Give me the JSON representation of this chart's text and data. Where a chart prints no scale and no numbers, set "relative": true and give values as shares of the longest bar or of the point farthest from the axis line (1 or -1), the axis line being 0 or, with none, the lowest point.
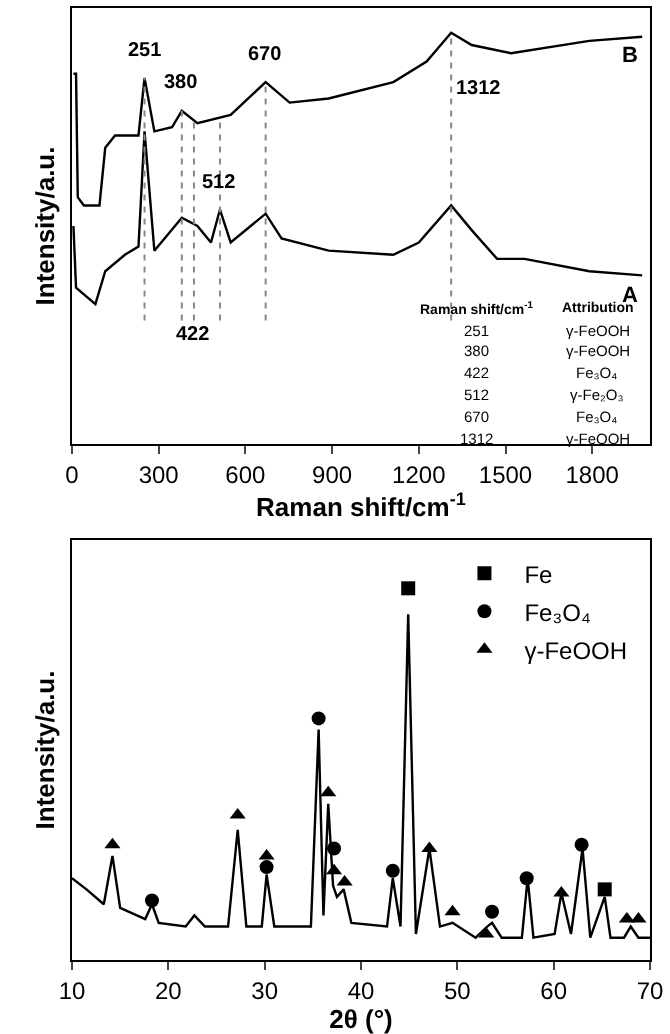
{
  "chart_data": [
    {
      "type": "line",
      "xlabel": "Raman shift/cm$^{-1}$",
      "ylabel": "Intensity/a.u.",
      "relative": true,
      "xlim": [
        0,
        2000
      ],
      "xticks": [
        0,
        300,
        600,
        900,
        1200,
        1500,
        1800
      ],
      "marker": "none",
      "series": [
        {
          "name": "B",
          "color": "#000000",
          "x": [
            5,
            14,
            20,
            41,
            95,
            115,
            149,
            230,
            251,
            285,
            346,
            380,
            434,
            549,
            670,
            753,
            888,
            1112,
            1227,
            1312,
            1383,
            1519,
            1790,
            1973
          ],
          "values": [
            0.9,
            0.9,
            0.6,
            0.58,
            0.58,
            0.72,
            0.75,
            0.75,
            0.89,
            0.76,
            0.77,
            0.81,
            0.78,
            0.8,
            0.88,
            0.83,
            0.84,
            0.88,
            0.93,
            1.0,
            0.97,
            0.95,
            0.98,
            0.99
          ]
        },
        {
          "name": "A",
          "color": "#000000",
          "x": [
            5,
            14,
            81,
            115,
            183,
            230,
            251,
            285,
            380,
            434,
            481,
            512,
            549,
            670,
            725,
            888,
            1112,
            1200,
            1312,
            1383,
            1471,
            1566,
            1790,
            1973
          ],
          "values": [
            0.53,
            0.38,
            0.34,
            0.42,
            0.46,
            0.48,
            0.76,
            0.47,
            0.55,
            0.53,
            0.49,
            0.57,
            0.49,
            0.56,
            0.5,
            0.47,
            0.46,
            0.49,
            0.58,
            0.52,
            0.45,
            0.45,
            0.42,
            0.41
          ]
        }
      ],
      "ref_lines": [
        {
          "axis": "x",
          "value": 251,
          "label": "251",
          "line_style": "dotted",
          "color": "#888888"
        },
        {
          "axis": "x",
          "value": 380,
          "label": "380",
          "line_style": "dotted",
          "color": "#888888"
        },
        {
          "axis": "x",
          "value": 422,
          "label": "422",
          "line_style": "dotted",
          "color": "#888888"
        },
        {
          "axis": "x",
          "value": 512,
          "label": "512",
          "line_style": "dotted",
          "color": "#888888"
        },
        {
          "axis": "x",
          "value": 670,
          "label": "670",
          "line_style": "dotted",
          "color": "#888888"
        },
        {
          "axis": "x",
          "value": 1312,
          "label": "1312",
          "line_style": "dotted",
          "color": "#888888"
        }
      ],
      "annotations": [
        "Raman shift/cm$^{-1}$",
        "Attribution",
        "251",
        "γ-FeOOH",
        "380",
        "γ-FeOOH",
        "422",
        "Fe₃O₄",
        "512",
        "γ-Fe₂O₃",
        "670",
        "Fe₃O₄",
        "1312",
        "γ-FeOOH"
      ]
    },
    {
      "type": "line",
      "xlabel": "2θ (°)",
      "ylabel": "Intensity/a.u.",
      "relative": true,
      "xlim": [
        10,
        70
      ],
      "xticks": [
        10,
        20,
        30,
        40,
        50,
        60,
        70
      ],
      "legend": "top right",
      "marker": "none",
      "series": [
        {
          "color": "#000000",
          "x": [
            10,
            11.5,
            13.3,
            14.2,
            15,
            17.6,
            18.3,
            19,
            21.8,
            22.7,
            23.8,
            26.2,
            27.2,
            28.1,
            29.7,
            30.2,
            31,
            34.8,
            35.6,
            36.1,
            36.6,
            37.1,
            37.5,
            38.2,
            39,
            42.7,
            43.3,
            44.1,
            44.9,
            45.7,
            47.1,
            48.2,
            49.5,
            51.9,
            53.1,
            53.6,
            54.6,
            56.7,
            57.3,
            57.9,
            60.1,
            60.8,
            61.8,
            63.0,
            63.8,
            65.3,
            65.9,
            67.3,
            68,
            68.8,
            70
          ],
          "values": [
            0.22,
            0.19,
            0.15,
            0.28,
            0.14,
            0.11,
            0.15,
            0.1,
            0.09,
            0.12,
            0.09,
            0.09,
            0.35,
            0.09,
            0.09,
            0.23,
            0.09,
            0.09,
            0.62,
            0.12,
            0.42,
            0.2,
            0.17,
            0.19,
            0.1,
            0.09,
            0.22,
            0.09,
            0.93,
            0.07,
            0.3,
            0.09,
            0.1,
            0.06,
            0.09,
            0.1,
            0.06,
            0.06,
            0.22,
            0.06,
            0.07,
            0.18,
            0.07,
            0.3,
            0.06,
            0.17,
            0.06,
            0.06,
            0.09,
            0.06,
            0.06
          ]
        },
        {
          "name": "Fe",
          "type": "scatter",
          "marker": "square",
          "color": "#000000",
          "x": [
            44.9,
            65.3
          ],
          "values": [
            1.0,
            0.19
          ]
        },
        {
          "name": "Fe₃O₄",
          "type": "scatter",
          "marker": "circle",
          "color": "#000000",
          "x": [
            18.3,
            30.2,
            35.6,
            37.2,
            43.3,
            53.6,
            57.2,
            62.9
          ],
          "values": [
            0.16,
            0.25,
            0.65,
            0.3,
            0.24,
            0.13,
            0.22,
            0.31
          ]
        },
        {
          "name": "γ-FeOOH",
          "type": "scatter",
          "marker": "triangle",
          "color": "#000000",
          "x": [
            14.2,
            27.2,
            30.2,
            36.6,
            37.2,
            38.3,
            47.1,
            49.5,
            53.0,
            60.8,
            67.6,
            68.8
          ],
          "values": [
            0.31,
            0.39,
            0.28,
            0.45,
            0.24,
            0.21,
            0.3,
            0.13,
            0.07,
            0.18,
            0.11,
            0.11
          ]
        }
      ]
    }
  ]
}
